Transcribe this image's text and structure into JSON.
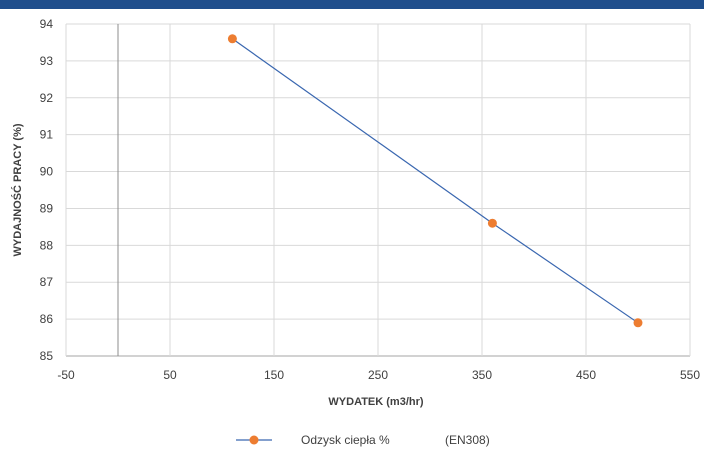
{
  "header": {
    "bar_color": "#1f4e8c"
  },
  "chart_data": {
    "type": "scatter",
    "mode": "lines+markers",
    "x_ticks": [
      -50,
      50,
      150,
      250,
      350,
      450,
      550
    ],
    "y_ticks": [
      85,
      86,
      87,
      88,
      89,
      90,
      91,
      92,
      93,
      94
    ],
    "xlim": [
      -50,
      550
    ],
    "ylim": [
      85,
      94
    ],
    "xlabel": "WYDATEK  (m3/hr)",
    "ylabel": "WYDAJNOŚĆ PRACY (%)",
    "grid": true,
    "legend_position": "bottom",
    "series": [
      {
        "name": "Odzysk ciepła %",
        "legend_note": "(EN308)",
        "line_color": "#3a67b0",
        "marker_color": "#ed7d31",
        "x": [
          110,
          360,
          500
        ],
        "y": [
          93.6,
          88.6,
          85.9
        ]
      }
    ]
  }
}
